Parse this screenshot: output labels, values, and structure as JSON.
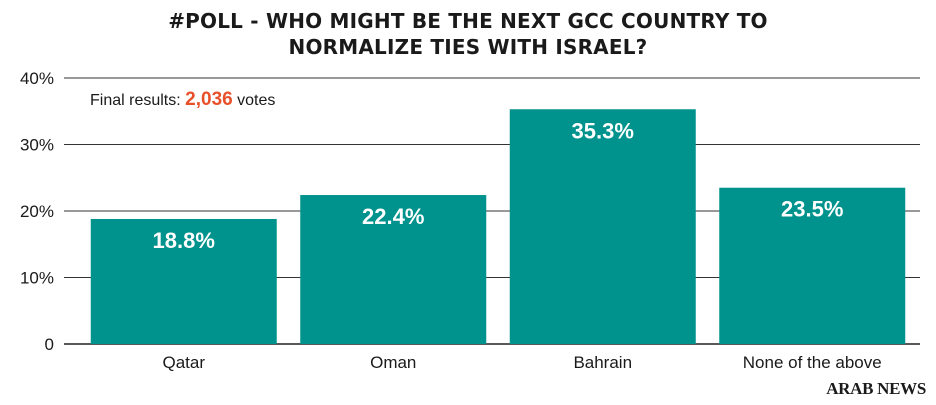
{
  "title_lines": [
    "#POLL - WHO MIGHT BE THE NEXT GCC COUNTRY TO",
    "NORMALIZE TIES WITH ISRAEL?"
  ],
  "subtitle": {
    "prefix": "Final results:",
    "count": "2,036",
    "suffix": "votes"
  },
  "brand": "ARAB NEWS",
  "colors": {
    "bar": "#00928c",
    "accent": "#e8502a"
  },
  "chart_data": {
    "type": "bar",
    "title": "#POLL - WHO MIGHT BE THE NEXT GCC COUNTRY TO NORMALIZE TIES WITH ISRAEL?",
    "categories": [
      "Qatar",
      "Oman",
      "Bahrain",
      "None of the above"
    ],
    "values": [
      18.8,
      22.4,
      35.3,
      23.5
    ],
    "value_labels": [
      "18.8%",
      "22.4%",
      "35.3%",
      "23.5%"
    ],
    "yticks": [
      0,
      10,
      20,
      30,
      40
    ],
    "ytick_labels": [
      "0",
      "10%",
      "20%",
      "30%",
      "40%"
    ],
    "ylim": [
      0,
      40
    ],
    "xlabel": "",
    "ylabel": "",
    "grid": true,
    "legend": "none"
  }
}
